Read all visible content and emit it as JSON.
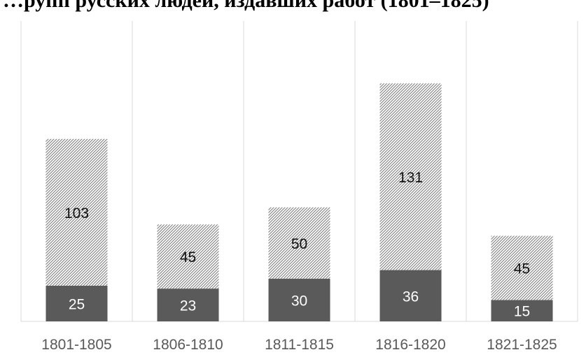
{
  "title": "…рупп русских людей, издавших работ (1801–1825)",
  "chart_data": {
    "type": "bar",
    "stacked": true,
    "categories": [
      "1801-1805",
      "1806-1810",
      "1811-1815",
      "1816-1820",
      "1821-1825"
    ],
    "series": [
      {
        "values": [
          25,
          23,
          30,
          36,
          15
        ],
        "color": "#5a5a5a",
        "fill": "solid"
      },
      {
        "values": [
          103,
          45,
          50,
          131,
          45
        ],
        "color": "#7f7f7f",
        "fill": "diagonal-hatch"
      }
    ],
    "ylim": [
      0,
      170
    ],
    "grid": false,
    "legend": "none",
    "data_labels": true
  }
}
